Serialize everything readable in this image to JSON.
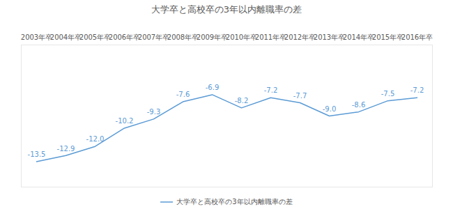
{
  "chart_data": {
    "type": "line",
    "title": "大学卒と高校卒の3年以内離職率の差",
    "categories": [
      "2003年卒",
      "2004年卒",
      "2005年卒",
      "2006年卒",
      "2007年卒",
      "2008年卒",
      "2009年卒",
      "2010年卒",
      "2011年卒",
      "2012年卒",
      "2013年卒",
      "2014年卒",
      "2015年卒",
      "2016年卒"
    ],
    "series": [
      {
        "name": "大学卒と高校卒の3年以内離職率の差",
        "color": "#5b9bd5",
        "values": [
          -13.5,
          -12.9,
          -12.0,
          -10.2,
          -9.3,
          -7.6,
          -6.9,
          -8.2,
          -7.2,
          -7.7,
          -9.0,
          -8.6,
          -7.5,
          -7.2
        ],
        "value_labels": [
          "-13.5",
          "-12.9",
          "-12.0",
          "-10.2",
          "-9.3",
          "-7.6",
          "-6.9",
          "-8.2",
          "-7.2",
          "-7.7",
          "-9.0",
          "-8.6",
          "-7.5",
          "-7.2"
        ]
      }
    ],
    "ylim": [
      -16,
      -2
    ],
    "yticks": [],
    "tick_labels": "x",
    "grid": false,
    "legend": "bottom",
    "data_labels": true,
    "marker": "none",
    "line_style": "solid"
  }
}
